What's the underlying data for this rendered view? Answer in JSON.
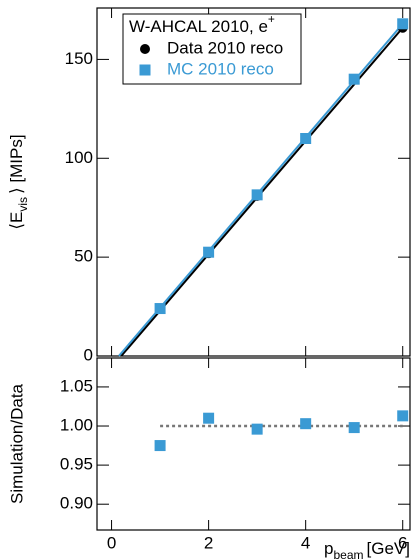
{
  "chart_data": [
    {
      "type": "scatter",
      "ylabel": {
        "main": "⟨E",
        "sub": "vis",
        "tail": "⟩ [MIPs]"
      },
      "legend_title": {
        "main": "W-AHCAL 2010, e",
        "sup": "+"
      },
      "legend": "top-left",
      "x": [
        1,
        2,
        3,
        4,
        5,
        6
      ],
      "series": [
        {
          "name": "Data 2010 reco",
          "color": "#000000",
          "marker": "circle",
          "values": [
            24,
            52,
            81,
            110,
            140,
            166
          ]
        },
        {
          "name": "MC 2010 reco",
          "color": "#3a9ad4",
          "marker": "square",
          "values": [
            24,
            52.5,
            81.5,
            110,
            140,
            168
          ]
        }
      ],
      "fits": [
        {
          "color": "#000000",
          "x": [
            0.2,
            6
          ],
          "y": [
            0,
            166
          ]
        },
        {
          "color": "#3a9ad4",
          "x": [
            0.15,
            6
          ],
          "y": [
            0,
            168
          ]
        }
      ],
      "xlim": [
        -0.3,
        6.15
      ],
      "xticks": [
        0,
        2,
        4,
        6
      ],
      "show_xtick_labels": false,
      "ylim": [
        0,
        176
      ],
      "yticks": [
        0,
        50,
        100,
        150
      ]
    },
    {
      "type": "scatter",
      "ylabel": "Simulation/Data",
      "xlabel": {
        "main": "p",
        "sub": "beam",
        "tail": "[GeV]"
      },
      "x": [
        1,
        2,
        3,
        4,
        5,
        6
      ],
      "series": [
        {
          "color": "#3a9ad4",
          "marker": "square",
          "values": [
            0.975,
            1.01,
            0.996,
            1.003,
            0.998,
            1.013
          ]
        }
      ],
      "refline": {
        "color": "#777777",
        "y": 1,
        "x": [
          1,
          6
        ]
      },
      "xlim": [
        -0.3,
        6.15
      ],
      "xticks": [
        0,
        2,
        4,
        6
      ],
      "show_xtick_labels": true,
      "ylim": [
        0.867,
        1.087
      ],
      "yticks": [
        {
          "value": 0.9,
          "label": "0.90"
        },
        0.95,
        {
          "value": 1,
          "label": "1.00"
        },
        1.05
      ]
    }
  ]
}
